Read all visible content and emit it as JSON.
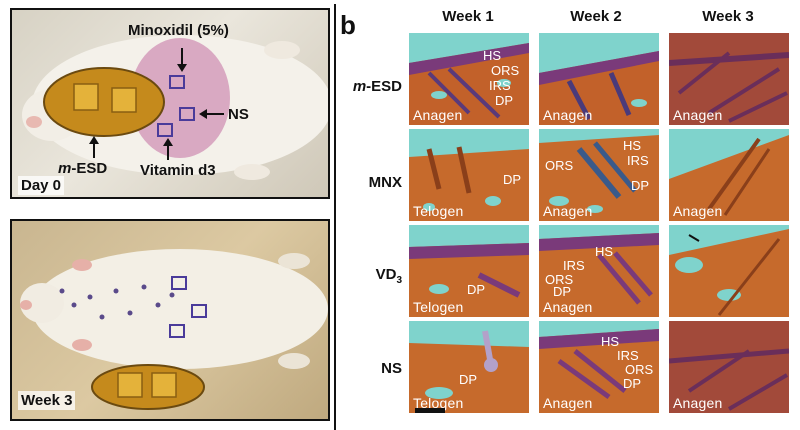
{
  "panel_b_letter": "b",
  "photos": {
    "top": {
      "stamp": "Day 0",
      "labels": {
        "minoxidil": "Minoxidil (5%)",
        "ns": "NS",
        "device_italic": "m",
        "device_rest": "-ESD",
        "vitamin": "Vitamin d3"
      }
    },
    "bottom": {
      "stamp": "Week 3"
    }
  },
  "grid": {
    "columns": [
      "Week 1",
      "Week 2",
      "Week 3"
    ],
    "rows": [
      {
        "italic": "m",
        "rest": "-ESD",
        "sub": ""
      },
      {
        "italic": "",
        "rest": "MNX",
        "sub": ""
      },
      {
        "italic": "",
        "rest": "VD",
        "sub": "3"
      },
      {
        "italic": "",
        "rest": "NS",
        "sub": ""
      }
    ],
    "phases": [
      [
        "Anagen",
        "Anagen",
        "Anagen"
      ],
      [
        "Telogen",
        "Anagen",
        "Anagen"
      ],
      [
        "Telogen",
        "Anagen",
        ""
      ],
      [
        "Telogen",
        "Anagen",
        "Anagen"
      ]
    ],
    "structure_labels": {
      "hs": "HS",
      "ors": "ORS",
      "irs": "IRS",
      "dp": "DP"
    }
  },
  "colors": {
    "tissue": "#c66a2c",
    "tissue_dark": "#8a3f1a",
    "purple": "#7a3a7a",
    "background_cyan": "#7fd3cc"
  }
}
